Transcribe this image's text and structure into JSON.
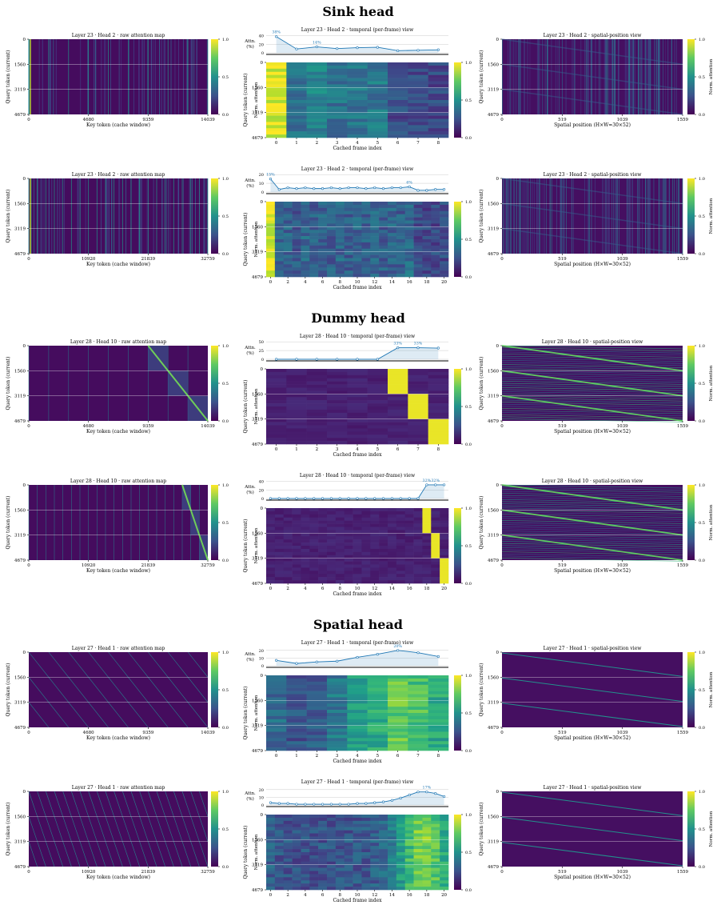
{
  "sections": [
    {
      "title": "Sink head",
      "kind": "sink",
      "rows": [
        {
          "layer": 23,
          "head": 2,
          "frames": 9,
          "raw_ticks": [
            "0",
            "4680",
            "9359",
            "14039"
          ],
          "raw_title": "Layer 23  ·  Head 2  ·  raw attention map",
          "temp_title": "Layer 23  ·  Head 2  ·  temporal (per-frame) view",
          "spat_title": "Layer 23  ·  Head 2  ·  spatial-position view",
          "line_yticks": [
            "0",
            "20",
            "40"
          ],
          "line_ymax": 45,
          "line_values": [
            38,
            9,
            14,
            10,
            12,
            13,
            5,
            6,
            7
          ],
          "line_labels": [
            {
              "i": 0,
              "text": "38%"
            },
            {
              "i": 2,
              "text": "14%"
            }
          ],
          "temporal_matrix": [
            0.95,
            0.35,
            0.45,
            0.38,
            0.38,
            0.4,
            0.22,
            0.22,
            0.22
          ],
          "frame_ticks": [
            0,
            1,
            2,
            3,
            4,
            5,
            6,
            7,
            8
          ]
        },
        {
          "layer": 23,
          "head": 2,
          "frames": 21,
          "raw_ticks": [
            "0",
            "10920",
            "21839",
            "32759"
          ],
          "raw_title": "Layer 23  ·  Head 2  ·  raw attention map",
          "temp_title": "Layer 23  ·  Head 2  ·  temporal (per-frame) view",
          "spat_title": "Layer 23  ·  Head 2  ·  spatial-position view",
          "line_yticks": [
            "0",
            "10",
            "20"
          ],
          "line_ymax": 22,
          "line_values": [
            15,
            3,
            5,
            4,
            5,
            4,
            4,
            5,
            4,
            5,
            5,
            4,
            5,
            4,
            5,
            5,
            6,
            2,
            2,
            3,
            3
          ],
          "line_labels": [
            {
              "i": 0,
              "text": "15%"
            },
            {
              "i": 16,
              "text": "6%"
            }
          ],
          "temporal_matrix": [
            0.95,
            0.3,
            0.32,
            0.28,
            0.34,
            0.3,
            0.32,
            0.3,
            0.33,
            0.3,
            0.32,
            0.3,
            0.33,
            0.3,
            0.32,
            0.3,
            0.36,
            0.22,
            0.22,
            0.22,
            0.22
          ],
          "frame_ticks": [
            0,
            2,
            4,
            6,
            8,
            10,
            12,
            14,
            16,
            18,
            20
          ]
        }
      ]
    },
    {
      "title": "Dummy head",
      "kind": "dummy",
      "rows": [
        {
          "layer": 28,
          "head": 10,
          "frames": 9,
          "raw_ticks": [
            "0",
            "4680",
            "9359",
            "14039"
          ],
          "raw_title": "Layer 28  ·  Head 10  ·  raw attention map",
          "temp_title": "Layer 28  ·  Head 10  ·  temporal (per-frame) view",
          "spat_title": "Layer 28  ·  Head 10  ·  spatial-position view",
          "line_yticks": [
            "0",
            "25",
            "50"
          ],
          "line_ymax": 55,
          "line_values": [
            0,
            0,
            0,
            0,
            0,
            0,
            33,
            33,
            32
          ],
          "line_labels": [
            {
              "i": 6,
              "text": "33%"
            },
            {
              "i": 7,
              "text": "33%"
            }
          ],
          "temporal_matrix": [],
          "frame_ticks": [
            0,
            1,
            2,
            3,
            4,
            5,
            6,
            7,
            8
          ]
        },
        {
          "layer": 28,
          "head": 10,
          "frames": 21,
          "raw_ticks": [
            "0",
            "10920",
            "21839",
            "32759"
          ],
          "raw_title": "Layer 28  ·  Head 10  ·  raw attention map",
          "temp_title": "Layer 28  ·  Head 10  ·  temporal (per-frame) view",
          "spat_title": "Layer 28  ·  Head 10  ·  spatial-position view",
          "line_yticks": [
            "0",
            "20",
            "40"
          ],
          "line_ymax": 45,
          "line_values": [
            0,
            0,
            0,
            0,
            0,
            0,
            0,
            0,
            0,
            0,
            0,
            0,
            0,
            0,
            0,
            0,
            0,
            0,
            32,
            32,
            32
          ],
          "line_labels": [
            {
              "i": 18,
              "text": "32%"
            },
            {
              "i": 19,
              "text": "32%"
            }
          ],
          "temporal_matrix": [],
          "frame_ticks": [
            0,
            2,
            4,
            6,
            8,
            10,
            12,
            14,
            16,
            18,
            20
          ]
        }
      ]
    },
    {
      "title": "Spatial head",
      "kind": "spatial",
      "rows": [
        {
          "layer": 27,
          "head": 1,
          "frames": 9,
          "raw_ticks": [
            "0",
            "4680",
            "9359",
            "14039"
          ],
          "raw_title": "Layer 27  ·  Head 1  ·  raw attention map",
          "temp_title": "Layer 27  ·  Head 1  ·  temporal (per-frame) view",
          "spat_title": "Layer 27  ·  Head 1  ·  spatial-position view",
          "line_yticks": [
            "0",
            "10",
            "20"
          ],
          "line_ymax": 25,
          "line_values": [
            7,
            3,
            5,
            6,
            11,
            15,
            20,
            17,
            12
          ],
          "line_labels": [
            {
              "i": 6,
              "text": "20%"
            }
          ],
          "temporal_matrix": [
            0.35,
            0.25,
            0.3,
            0.4,
            0.55,
            0.6,
            0.75,
            0.7,
            0.6
          ],
          "frame_ticks": [
            0,
            1,
            2,
            3,
            4,
            5,
            6,
            7,
            8
          ]
        },
        {
          "layer": 27,
          "head": 1,
          "frames": 21,
          "raw_ticks": [
            "0",
            "10920",
            "21839",
            "32759"
          ],
          "raw_title": "Layer 27  ·  Head 1  ·  raw attention map",
          "temp_title": "Layer 27  ·  Head 1  ·  temporal (per-frame) view",
          "spat_title": "Layer 27  ·  Head 1  ·  spatial-position view",
          "line_yticks": [
            "0",
            "10",
            "20"
          ],
          "line_ymax": 25,
          "line_values": [
            3,
            2,
            2,
            1,
            1,
            1,
            1,
            1,
            1,
            1,
            2,
            2,
            3,
            4,
            6,
            9,
            13,
            17,
            17,
            15,
            11
          ],
          "line_labels": [
            {
              "i": 18,
              "text": "17%"
            }
          ],
          "temporal_matrix": [
            0.3,
            0.27,
            0.26,
            0.25,
            0.25,
            0.25,
            0.26,
            0.25,
            0.26,
            0.27,
            0.27,
            0.28,
            0.3,
            0.35,
            0.42,
            0.55,
            0.68,
            0.78,
            0.8,
            0.72,
            0.62
          ],
          "frame_ticks": [
            0,
            2,
            4,
            6,
            8,
            10,
            12,
            14,
            16,
            18,
            20
          ]
        }
      ]
    }
  ],
  "labels": {
    "query_axis": "Query token (current)",
    "raw_xlabel": "Key token (cache window)",
    "temporal_xlabel": "Cached frame index",
    "spatial_xlabel": "Spatial position  (H×W=30×52)",
    "norm_attention": "Norm. attention",
    "line_ylabel_1": "Attn.",
    "line_ylabel_2": "(%)",
    "query_ticks": [
      "0",
      "1560",
      "3119",
      "4679"
    ],
    "spatial_ticks": [
      "0",
      "519",
      "1039",
      "1559"
    ],
    "colorbar_ticks": [
      "1.0",
      "0.5",
      "0.0"
    ]
  },
  "colors": {
    "low": "#440154",
    "mid": "#21918c",
    "high": "#fde725",
    "line": "#1f77b4"
  },
  "chart_data": {
    "type": "heatmap",
    "title": "",
    "colormap": "viridis",
    "colorbar_range": [
      0,
      1
    ],
    "panels": [
      {
        "section": "Sink head",
        "layer": 23,
        "head": 2,
        "frames": 9,
        "temporal_attention_pct": [
          38,
          9,
          14,
          10,
          12,
          13,
          5,
          6,
          7
        ]
      },
      {
        "section": "Sink head",
        "layer": 23,
        "head": 2,
        "frames": 21,
        "temporal_attention_pct": [
          15,
          3,
          5,
          4,
          5,
          4,
          4,
          5,
          4,
          5,
          5,
          4,
          5,
          4,
          5,
          5,
          6,
          2,
          2,
          3,
          3
        ]
      },
      {
        "section": "Dummy head",
        "layer": 28,
        "head": 10,
        "frames": 9,
        "temporal_attention_pct": [
          0,
          0,
          0,
          0,
          0,
          0,
          33,
          33,
          32
        ]
      },
      {
        "section": "Dummy head",
        "layer": 28,
        "head": 10,
        "frames": 21,
        "temporal_attention_pct": [
          0,
          0,
          0,
          0,
          0,
          0,
          0,
          0,
          0,
          0,
          0,
          0,
          0,
          0,
          0,
          0,
          0,
          0,
          32,
          32,
          32
        ]
      },
      {
        "section": "Spatial head",
        "layer": 27,
        "head": 1,
        "frames": 9,
        "temporal_attention_pct": [
          7,
          3,
          5,
          6,
          11,
          15,
          20,
          17,
          12
        ]
      },
      {
        "section": "Spatial head",
        "layer": 27,
        "head": 1,
        "frames": 21,
        "temporal_attention_pct": [
          3,
          2,
          2,
          1,
          1,
          1,
          1,
          1,
          1,
          1,
          2,
          2,
          3,
          4,
          6,
          9,
          13,
          17,
          17,
          15,
          11
        ]
      }
    ]
  }
}
